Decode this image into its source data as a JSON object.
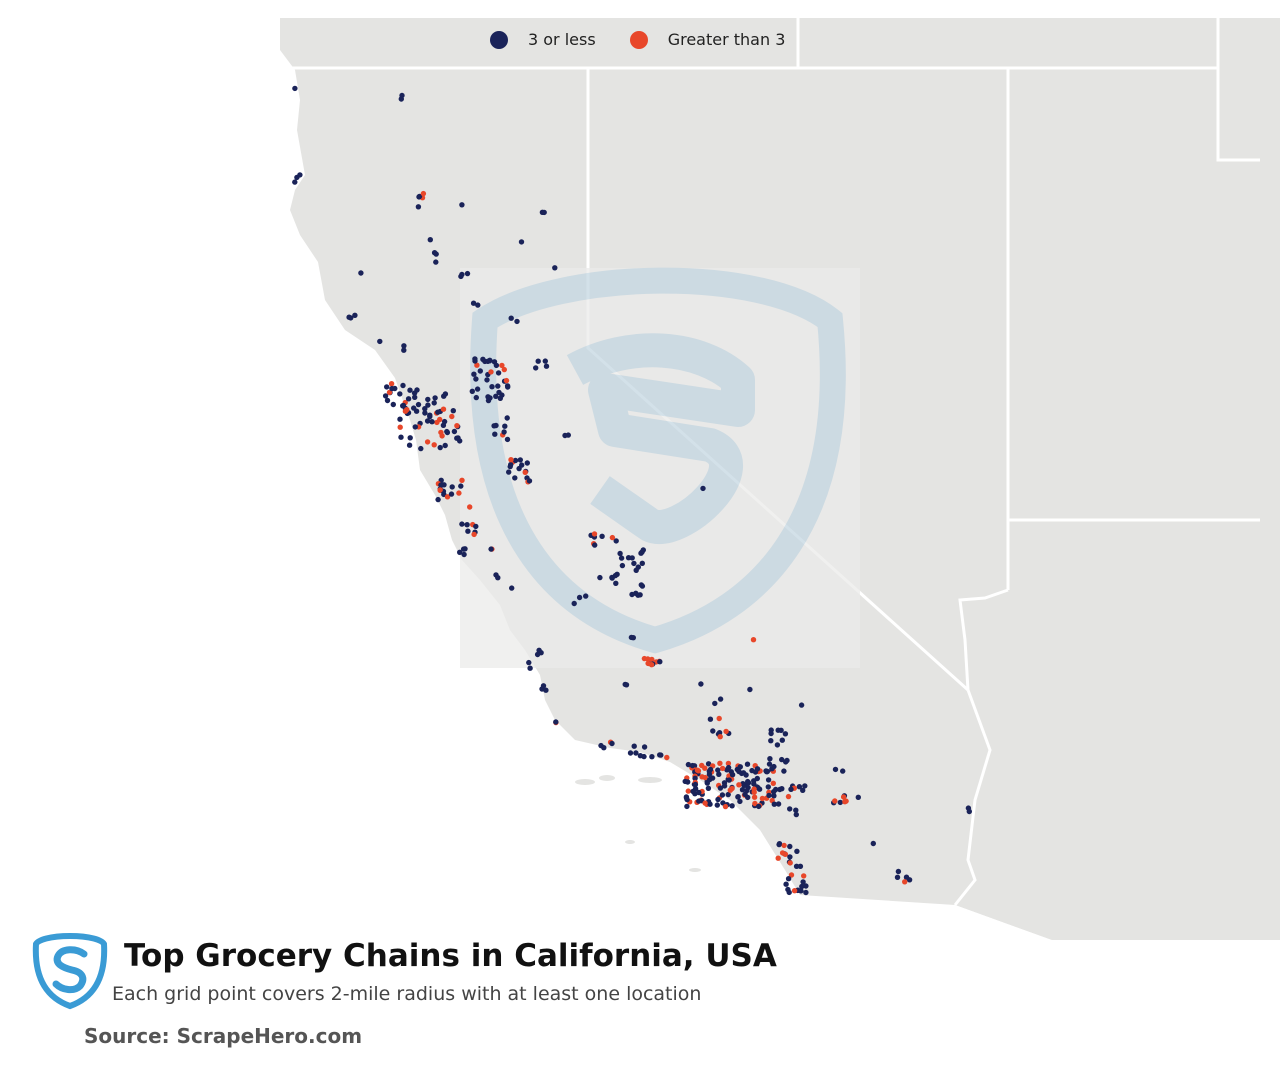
{
  "legend": {
    "items": [
      {
        "label": "3 or less",
        "color": "#1a2359"
      },
      {
        "label": "Greater than 3",
        "color": "#e8472a"
      }
    ]
  },
  "title": "Top Grocery Chains in California, USA",
  "subtitle": "Each grid point covers 2-mile radius with at least one location",
  "source": "Source: ScrapeHero.com",
  "colors": {
    "land": "#e4e4e2",
    "border": "#ffffff",
    "watermark": "#c5d7e2",
    "logo": "#3a9bd5"
  }
}
